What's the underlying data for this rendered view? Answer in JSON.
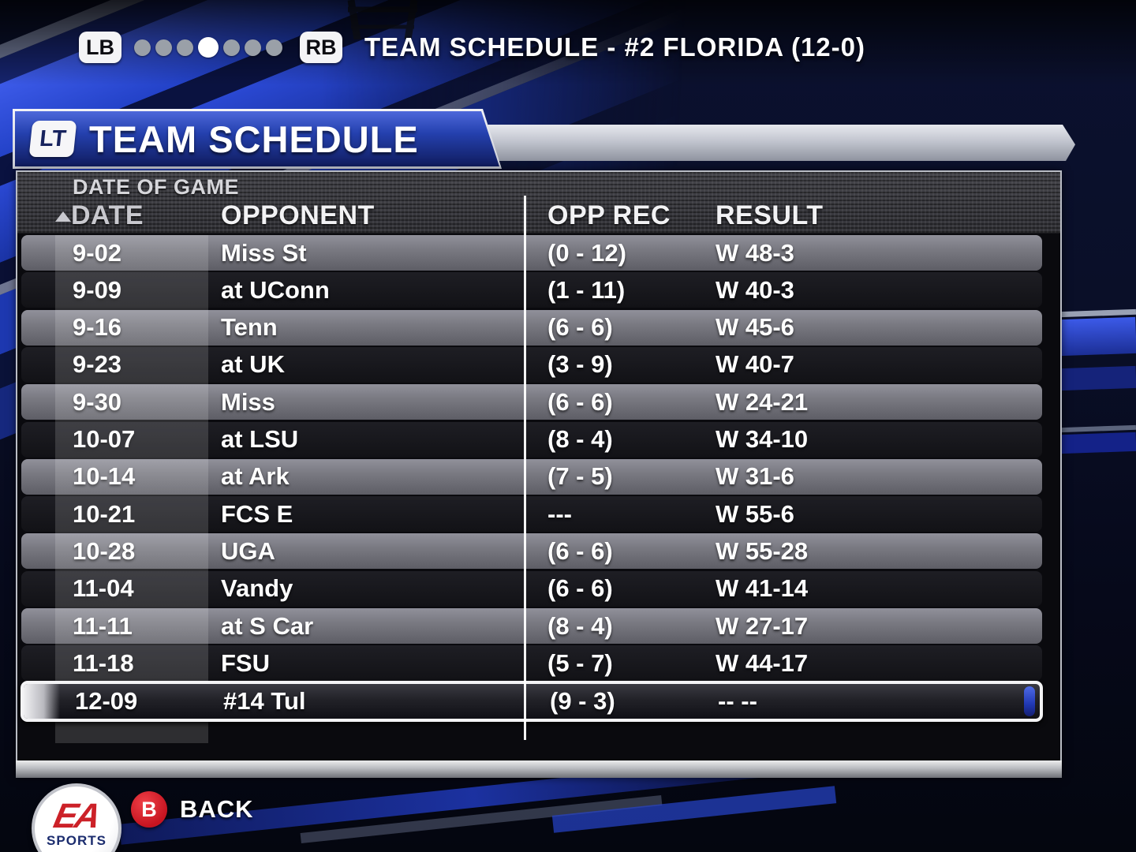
{
  "top_bar": {
    "lb_label": "LB",
    "rb_label": "RB",
    "title": "TEAM SCHEDULE - #2 FLORIDA (12-0)",
    "page_dots": {
      "count": 7,
      "active_index": 3
    }
  },
  "title_panel": {
    "lt_label": "LT",
    "title": "TEAM SCHEDULE"
  },
  "schedule": {
    "group_header": "DATE OF GAME",
    "columns": {
      "date": "DATE",
      "opponent": "OPPONENT",
      "opp_rec": "OPP REC",
      "result": "RESULT"
    },
    "sort": {
      "column": "DATE",
      "direction": "ascending",
      "icon": "triangle-up"
    },
    "rows": [
      {
        "date": "9-02",
        "opponent": "Miss St",
        "opp_rec": "(0 - 12)",
        "result": "W 48-3"
      },
      {
        "date": "9-09",
        "opponent": "at UConn",
        "opp_rec": "(1 - 11)",
        "result": "W 40-3"
      },
      {
        "date": "9-16",
        "opponent": "Tenn",
        "opp_rec": "(6 - 6)",
        "result": "W 45-6"
      },
      {
        "date": "9-23",
        "opponent": "at UK",
        "opp_rec": "(3 - 9)",
        "result": "W 40-7"
      },
      {
        "date": "9-30",
        "opponent": "Miss",
        "opp_rec": "(6 - 6)",
        "result": "W 24-21"
      },
      {
        "date": "10-07",
        "opponent": "at LSU",
        "opp_rec": "(8 - 4)",
        "result": "W 34-10"
      },
      {
        "date": "10-14",
        "opponent": "at Ark",
        "opp_rec": "(7 - 5)",
        "result": "W 31-6"
      },
      {
        "date": "10-21",
        "opponent": "FCS E",
        "opp_rec": "---",
        "result": "W 55-6"
      },
      {
        "date": "10-28",
        "opponent": "UGA",
        "opp_rec": "(6 - 6)",
        "result": "W 55-28"
      },
      {
        "date": "11-04",
        "opponent": "Vandy",
        "opp_rec": "(6 - 6)",
        "result": "W 41-14"
      },
      {
        "date": "11-11",
        "opponent": "at S Car",
        "opp_rec": "(8 - 4)",
        "result": "W 27-17"
      },
      {
        "date": "11-18",
        "opponent": "FSU",
        "opp_rec": "(5 - 7)",
        "result": "W 44-17"
      },
      {
        "date": "12-09",
        "opponent": "#14 Tul",
        "opp_rec": "(9 - 3)",
        "result": "-- --",
        "selected": true
      }
    ]
  },
  "footer": {
    "back_button": "B",
    "back_label": "BACK",
    "ea_logo": {
      "line1": "EA",
      "line2": "SPORTS"
    }
  },
  "colors": {
    "accent_blue": "#2d50e0",
    "background_navy": "#0a0f28",
    "row_light_gray": "#77777f",
    "row_dark": "#17171b",
    "selected_border": "#f3f3f5",
    "back_button_red": "#c61420",
    "frame_silver": "#b9bcc4"
  }
}
